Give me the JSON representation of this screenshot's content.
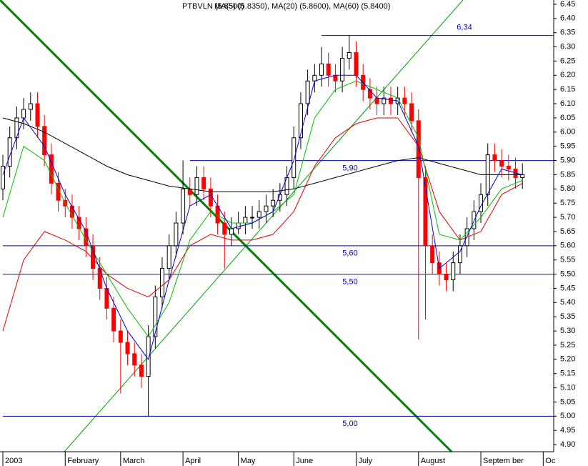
{
  "chart_data": {
    "type": "candlestick",
    "title": "PTBVLN (5.8500)",
    "subtitle": "MA(5) (5.8350), MA(20) (5.8600), MA(60) (5.8400)",
    "xlim": [
      0,
      79
    ],
    "xticks": [
      {
        "value": 0,
        "label": "2003"
      },
      {
        "value": 9,
        "label": "February"
      },
      {
        "value": 17,
        "label": "March"
      },
      {
        "value": 26,
        "label": "April"
      },
      {
        "value": 34,
        "label": "May"
      },
      {
        "value": 42,
        "label": "June"
      },
      {
        "value": 51,
        "label": "July"
      },
      {
        "value": 60,
        "label": "August"
      },
      {
        "value": 69,
        "label": "Septem ber"
      },
      {
        "value": 78,
        "label": "Oc"
      }
    ],
    "ylim": [
      4.875,
      6.465
    ],
    "yticks": [
      {
        "value": 6.45,
        "label": "6.45"
      },
      {
        "value": 6.4,
        "label": "6.40"
      },
      6.35,
      {
        "value": 6.3,
        "label": "6.30"
      },
      6.25,
      {
        "value": 6.2,
        "label": "6.20"
      },
      6.15,
      {
        "value": 6.1,
        "label": "6.10"
      },
      6.05,
      {
        "value": 6,
        "label": "6.00"
      },
      5.95,
      {
        "value": 5.9,
        "label": "5.90"
      },
      5.85,
      {
        "value": 5.8,
        "label": "5.80"
      },
      5.75,
      {
        "value": 5.7,
        "label": "5.70"
      },
      5.65,
      {
        "value": 5.6,
        "label": "5.60"
      },
      5.55,
      {
        "value": 5.5,
        "label": "5.50"
      },
      5.45,
      {
        "value": 5.4,
        "label": "5.40"
      },
      5.35,
      {
        "value": 5.3,
        "label": "5.30"
      },
      5.25,
      {
        "value": 5.2,
        "label": "5.20"
      },
      5.15,
      {
        "value": 5.1,
        "label": "5.10"
      },
      5.05,
      {
        "value": 5,
        "label": "5.00"
      },
      4.95,
      {
        "value": 4.9,
        "label": "4.90"
      }
    ],
    "up_color": "#ffffff",
    "down_color": "#ff0000",
    "open": [
      5.8,
      5.88,
      5.98,
      6.05,
      6.08,
      6.1,
      6.02,
      5.92,
      5.82,
      5.76,
      5.74,
      5.7,
      5.66,
      5.6,
      5.52,
      5.45,
      5.38,
      5.3,
      5.26,
      5.22,
      5.18,
      5.14,
      5.28,
      5.42,
      5.52,
      5.6,
      5.68,
      5.8,
      5.78,
      5.84,
      5.8,
      5.74,
      5.68,
      5.64,
      5.66,
      5.68,
      5.7,
      5.7,
      5.72,
      5.74,
      5.76,
      5.78,
      5.84,
      5.98,
      6.1,
      6.18,
      6.2,
      6.24,
      6.2,
      6.18,
      6.26,
      6.28,
      6.2,
      6.15,
      6.12,
      6.1,
      6.12,
      6.1,
      6.12,
      6.1,
      6.04,
      5.84,
      5.6,
      5.54,
      5.5,
      5.48,
      5.54,
      5.6,
      5.66,
      5.72,
      5.78,
      5.92,
      5.9,
      5.88,
      5.87,
      5.84
    ],
    "high": [
      5.92,
      6.02,
      6.09,
      6.12,
      6.14,
      6.14,
      6.06,
      5.96,
      5.86,
      5.8,
      5.78,
      5.74,
      5.7,
      5.64,
      5.56,
      5.49,
      5.42,
      5.34,
      5.3,
      5.26,
      5.22,
      5.32,
      5.46,
      5.56,
      5.64,
      5.72,
      5.9,
      5.84,
      5.88,
      5.88,
      5.84,
      5.78,
      5.72,
      5.7,
      5.72,
      5.74,
      5.74,
      5.76,
      5.78,
      5.8,
      5.82,
      5.88,
      6.02,
      6.14,
      6.22,
      6.24,
      6.3,
      6.28,
      6.24,
      6.3,
      6.34,
      6.32,
      6.24,
      6.19,
      6.16,
      6.16,
      6.16,
      6.16,
      6.16,
      6.14,
      6.08,
      5.88,
      5.64,
      5.58,
      5.54,
      5.58,
      5.64,
      5.7,
      5.76,
      5.82,
      5.96,
      5.96,
      5.94,
      5.92,
      5.91,
      5.89
    ],
    "low": [
      5.76,
      5.84,
      5.94,
      6.01,
      6.04,
      5.98,
      5.88,
      5.78,
      5.72,
      5.7,
      5.66,
      5.62,
      5.56,
      5.48,
      5.41,
      5.34,
      5.26,
      5.08,
      5.18,
      5.14,
      5.1,
      5.0,
      5.24,
      5.38,
      5.48,
      5.56,
      5.64,
      5.74,
      5.74,
      5.76,
      5.7,
      5.64,
      5.52,
      5.6,
      5.64,
      5.64,
      5.66,
      5.66,
      5.68,
      5.7,
      5.72,
      5.74,
      5.8,
      5.94,
      6.06,
      6.14,
      6.16,
      6.16,
      6.14,
      6.14,
      6.22,
      6.16,
      6.11,
      6.08,
      6.06,
      6.06,
      6.06,
      6.06,
      6.06,
      6.0,
      5.27,
      5.34,
      5.5,
      5.46,
      5.44,
      5.44,
      5.5,
      5.56,
      5.62,
      5.68,
      5.74,
      5.86,
      5.84,
      5.83,
      5.8,
      5.8
    ],
    "close": [
      5.88,
      5.98,
      6.05,
      6.08,
      6.1,
      6.02,
      5.92,
      5.82,
      5.76,
      5.74,
      5.7,
      5.66,
      5.6,
      5.52,
      5.45,
      5.38,
      5.3,
      5.26,
      5.22,
      5.18,
      5.14,
      5.28,
      5.42,
      5.52,
      5.6,
      5.68,
      5.8,
      5.78,
      5.84,
      5.8,
      5.74,
      5.68,
      5.64,
      5.66,
      5.68,
      5.7,
      5.7,
      5.72,
      5.74,
      5.76,
      5.78,
      5.84,
      5.98,
      6.1,
      6.18,
      6.2,
      6.24,
      6.2,
      6.18,
      6.26,
      6.28,
      6.2,
      6.15,
      6.12,
      6.1,
      6.12,
      6.1,
      6.12,
      6.1,
      6.04,
      5.84,
      5.6,
      5.54,
      5.5,
      5.48,
      5.54,
      5.6,
      5.66,
      5.72,
      5.78,
      5.92,
      5.9,
      5.88,
      5.87,
      5.84,
      5.85
    ],
    "series": [
      {
        "color": "#000000",
        "x": [
          0,
          3,
          6,
          9,
          12,
          15,
          18,
          21,
          24,
          27,
          30,
          33,
          36,
          39,
          42,
          45,
          48,
          51,
          54,
          57,
          60,
          63,
          66,
          69,
          72,
          75
        ],
        "values": [
          6.05,
          6.03,
          6.0,
          5.96,
          5.92,
          5.88,
          5.85,
          5.83,
          5.81,
          5.8,
          5.79,
          5.79,
          5.79,
          5.79,
          5.8,
          5.82,
          5.84,
          5.86,
          5.88,
          5.9,
          5.91,
          5.89,
          5.87,
          5.85,
          5.85,
          5.85
        ]
      },
      {
        "color": "#e00000",
        "x": [
          0,
          3,
          6,
          9,
          12,
          15,
          18,
          21,
          24,
          27,
          30,
          33,
          36,
          39,
          42,
          45,
          48,
          51,
          54,
          57,
          60,
          63,
          66,
          69,
          72,
          75
        ],
        "values": [
          5.3,
          5.55,
          5.65,
          5.62,
          5.58,
          5.5,
          5.45,
          5.42,
          5.48,
          5.6,
          5.64,
          5.62,
          5.62,
          5.64,
          5.72,
          5.88,
          5.98,
          6.03,
          6.05,
          6.05,
          5.95,
          5.72,
          5.62,
          5.65,
          5.78,
          5.82
        ]
      },
      {
        "color": "#00c000",
        "x": [
          0,
          3,
          6,
          9,
          12,
          15,
          18,
          21,
          24,
          27,
          30,
          33,
          36,
          39,
          42,
          45,
          48,
          51,
          54,
          57,
          60,
          63,
          66,
          69,
          72,
          75
        ],
        "values": [
          5.7,
          5.95,
          5.9,
          5.75,
          5.62,
          5.5,
          5.38,
          5.28,
          5.4,
          5.62,
          5.72,
          5.68,
          5.68,
          5.72,
          5.78,
          6.05,
          6.15,
          6.18,
          6.15,
          6.12,
          5.98,
          5.64,
          5.62,
          5.7,
          5.8,
          5.83
        ]
      },
      {
        "color": "#0000e0",
        "x": [
          0,
          3,
          6,
          9,
          12,
          15,
          18,
          21,
          24,
          27,
          30,
          33,
          36,
          39,
          42,
          45,
          48,
          51,
          54,
          57,
          60,
          63,
          66,
          69,
          72,
          75
        ],
        "values": [
          5.85,
          6.05,
          5.95,
          5.78,
          5.65,
          5.45,
          5.3,
          5.2,
          5.48,
          5.74,
          5.78,
          5.66,
          5.68,
          5.72,
          5.9,
          6.18,
          6.2,
          6.2,
          6.12,
          6.11,
          5.95,
          5.52,
          5.58,
          5.74,
          5.87,
          5.85
        ]
      }
    ],
    "levels": [
      {
        "value": 6.34,
        "label": "6,34",
        "start": 46
      },
      {
        "value": 5.9,
        "label": "5,90",
        "start": 27
      },
      {
        "value": 5.6,
        "label": "5,60",
        "start": 0
      },
      {
        "value": 5.5,
        "label": "5,50",
        "start": 0
      },
      {
        "value": 5.0,
        "label": "5,00",
        "start": 0
      }
    ]
  }
}
